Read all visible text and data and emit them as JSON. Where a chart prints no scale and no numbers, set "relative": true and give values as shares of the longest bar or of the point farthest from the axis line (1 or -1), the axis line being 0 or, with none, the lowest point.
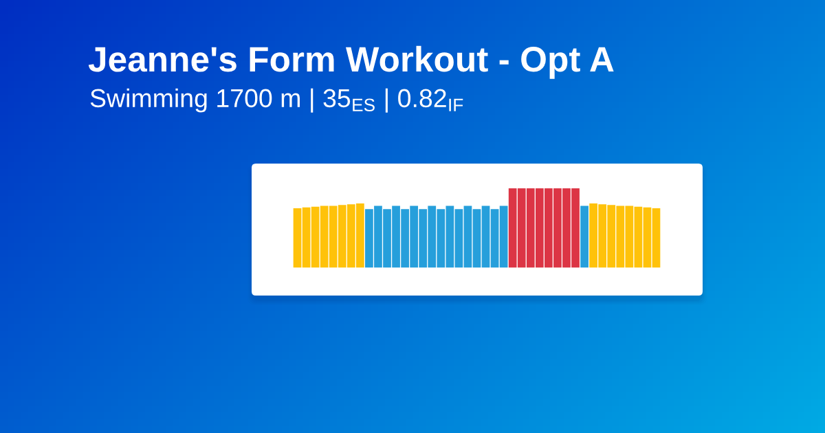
{
  "chart_data": {
    "type": "bar",
    "title": "Jeanne's Form Workout - Opt A",
    "subtitle": "Swimming 1700 m | 35$_{ES}$ | 0.82$_{IF}$",
    "relative": true,
    "categories": [
      null,
      null,
      null,
      null,
      null,
      null,
      null,
      null,
      null,
      null,
      null,
      null,
      null,
      null,
      null,
      null,
      null,
      null,
      null,
      null,
      null,
      null,
      null,
      null,
      null,
      null,
      null,
      null,
      null,
      null,
      null,
      null,
      null,
      null,
      null,
      null,
      null,
      null,
      null,
      null,
      null
    ],
    "values": [
      0.75,
      0.76,
      0.77,
      0.78,
      0.78,
      0.79,
      0.8,
      0.81,
      0.74,
      0.78,
      0.74,
      0.78,
      0.74,
      0.78,
      0.74,
      0.78,
      0.74,
      0.78,
      0.74,
      0.78,
      0.74,
      0.78,
      0.74,
      0.78,
      1,
      1,
      1,
      1,
      1,
      1,
      1,
      1,
      0.78,
      0.81,
      0.8,
      0.79,
      0.78,
      0.78,
      0.77,
      0.76,
      0.75
    ],
    "colors": [
      "#ffc20a",
      "#ffc20a",
      "#ffc20a",
      "#ffc20a",
      "#ffc20a",
      "#ffc20a",
      "#ffc20a",
      "#ffc20a",
      "#269fdb",
      "#269fdb",
      "#269fdb",
      "#269fdb",
      "#269fdb",
      "#269fdb",
      "#269fdb",
      "#269fdb",
      "#269fdb",
      "#269fdb",
      "#269fdb",
      "#269fdb",
      "#269fdb",
      "#269fdb",
      "#269fdb",
      "#269fdb",
      "#dc3545",
      "#dc3545",
      "#dc3545",
      "#dc3545",
      "#dc3545",
      "#dc3545",
      "#dc3545",
      "#dc3545",
      "#269fdb",
      "#ffc20a",
      "#ffc20a",
      "#ffc20a",
      "#ffc20a",
      "#ffc20a",
      "#ffc20a",
      "#ffc20a",
      "#ffc20a"
    ]
  }
}
